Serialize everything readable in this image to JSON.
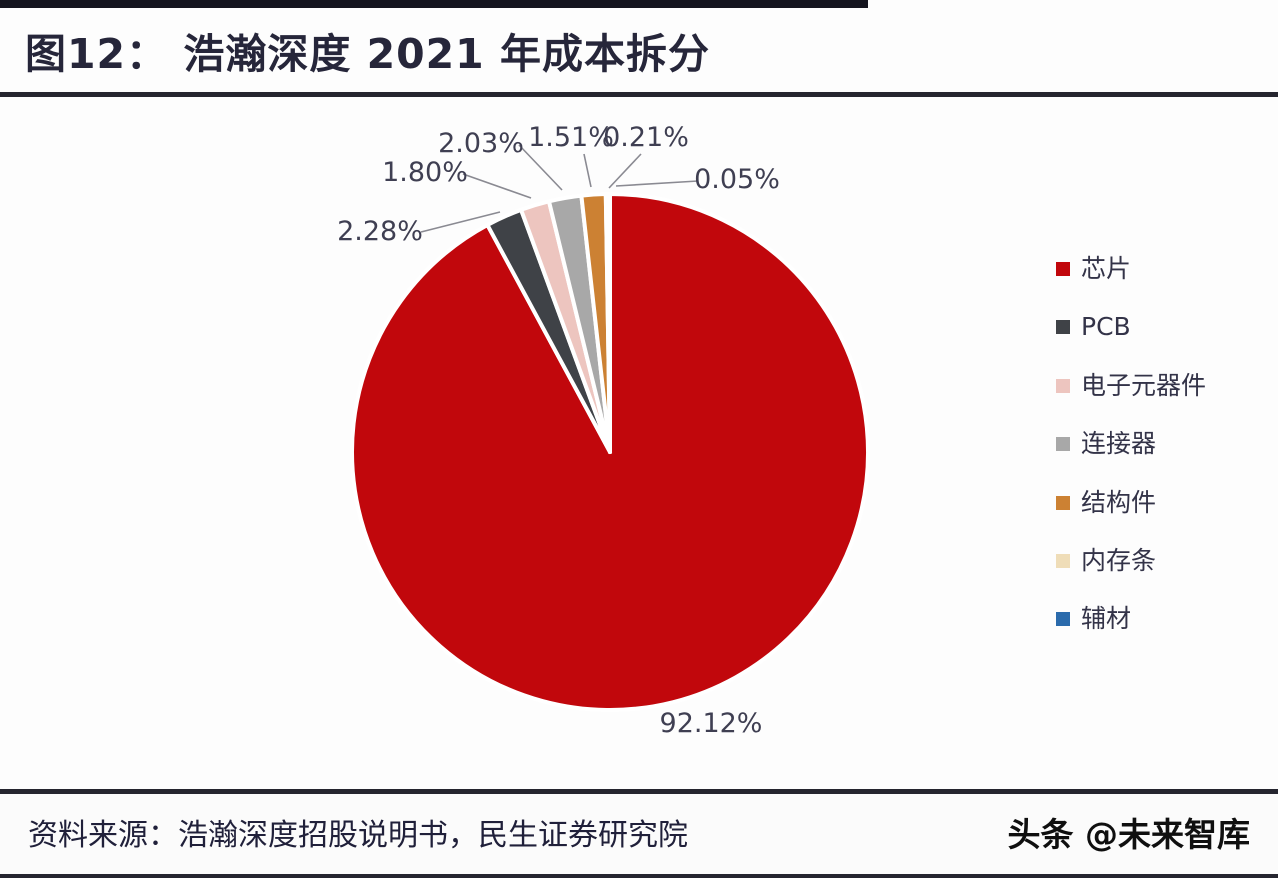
{
  "header": {
    "title": "图12： 浩瀚深度 2021 年成本拆分"
  },
  "footer": {
    "source": "资料来源：浩瀚深度招股说明书，民生证券研究院",
    "watermark": "头条 @未来智库"
  },
  "colors": {
    "rule": "#25252f",
    "label_text": "#3f3f52",
    "leader_line": "#8a8a92"
  },
  "chart_data": {
    "type": "pie",
    "title": "图12： 浩瀚深度 2021 年成本拆分",
    "legend_position": "right",
    "start_angle_deg": 0,
    "direction": "clockwise",
    "series": [
      {
        "name": "芯片",
        "value": 92.12,
        "label": "92.12%",
        "color": "#c1070c"
      },
      {
        "name": "PCB",
        "value": 2.28,
        "label": "2.28%",
        "color": "#3f4247"
      },
      {
        "name": "电子元器件",
        "value": 1.8,
        "label": "1.80%",
        "color": "#edc5bf"
      },
      {
        "name": "连接器",
        "value": 2.03,
        "label": "2.03%",
        "color": "#a8a8a8"
      },
      {
        "name": "结构件",
        "value": 1.51,
        "label": "1.51%",
        "color": "#cc8133"
      },
      {
        "name": "内存条",
        "value": 0.21,
        "label": "0.21%",
        "color": "#efddb8"
      },
      {
        "name": "辅材",
        "value": 0.05,
        "label": "0.05%",
        "color": "#2b6bac"
      }
    ]
  }
}
